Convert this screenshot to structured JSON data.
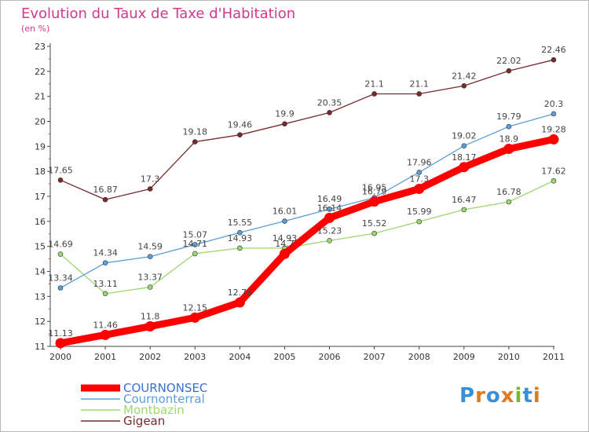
{
  "header": {
    "title": "Evolution du Taux de Taxe d'Habitation",
    "unit": "(en %)"
  },
  "logo": {
    "letters": [
      "P",
      "r",
      "o",
      "x",
      "i",
      "t",
      "i"
    ],
    "colors": [
      "#3a8fd6",
      "#e07a1a",
      "#3a8fd6",
      "#e07a1a",
      "#7ab82a",
      "#3a8fd6",
      "#e07a1a"
    ]
  },
  "chart_data": {
    "type": "line",
    "title": "Evolution du Taux de Taxe d'Habitation",
    "ylabel": "(en %)",
    "xlabel": "",
    "x": [
      "2000",
      "2001",
      "2002",
      "2003",
      "2004",
      "2005",
      "2006",
      "2007",
      "2008",
      "2009",
      "2010",
      "2011"
    ],
    "ylim": [
      11,
      23
    ],
    "yticks": [
      11,
      12,
      13,
      14,
      15,
      16,
      17,
      18,
      19,
      20,
      21,
      22,
      23
    ],
    "grid": false,
    "legend": "bottom-left",
    "series": [
      {
        "name": "Gigean",
        "color": "#7a2a2a",
        "labelColor": "#7a2a2a",
        "values": [
          17.65,
          16.87,
          17.3,
          19.18,
          19.46,
          19.9,
          20.35,
          21.1,
          21.1,
          21.42,
          22.02,
          22.46
        ],
        "labels": [
          "17.65",
          "16.87",
          "17.3",
          "19.18",
          "19.46",
          "19.9",
          "20.35",
          "21.1",
          "21.1",
          "21.42",
          "22.02",
          "22.46"
        ]
      },
      {
        "name": "Montbazin",
        "color": "#9bd870",
        "labelColor": "#9bd870",
        "values": [
          14.69,
          13.11,
          13.37,
          14.71,
          14.93,
          14.93,
          15.23,
          15.52,
          15.99,
          16.47,
          16.78,
          17.62
        ],
        "labels": [
          "14.69",
          "13.11",
          "13.37",
          "14.71",
          "14.93",
          "14.93",
          "15.23",
          "15.52",
          "15.99",
          "16.47",
          "16.78",
          "17.62"
        ]
      },
      {
        "name": "Cournonterral",
        "color": "#5b9fd8",
        "labelColor": "#5b9fd8",
        "values": [
          13.34,
          14.34,
          14.59,
          15.07,
          15.55,
          16.01,
          16.49,
          16.95,
          17.96,
          19.02,
          19.79,
          20.3
        ],
        "labels": [
          "13.34",
          "14.34",
          "14.59",
          "15.07",
          "15.55",
          "16.01",
          "16.49",
          "16.95",
          "17.96",
          "19.02",
          "19.79",
          "20.3"
        ]
      },
      {
        "name": "COURNONSEC",
        "color": "#ff0000",
        "labelColor": "#3a6fd6",
        "values": [
          11.13,
          11.46,
          11.8,
          12.15,
          12.76,
          14.7,
          16.14,
          16.79,
          17.3,
          18.17,
          18.9,
          19.28
        ],
        "labels": [
          "11.13",
          "11.46",
          "11.8",
          "12.15",
          "12.76",
          "14.7",
          "16.14",
          "16.79",
          "17.3",
          "18.17",
          "18.9",
          "19.28"
        ]
      }
    ]
  }
}
